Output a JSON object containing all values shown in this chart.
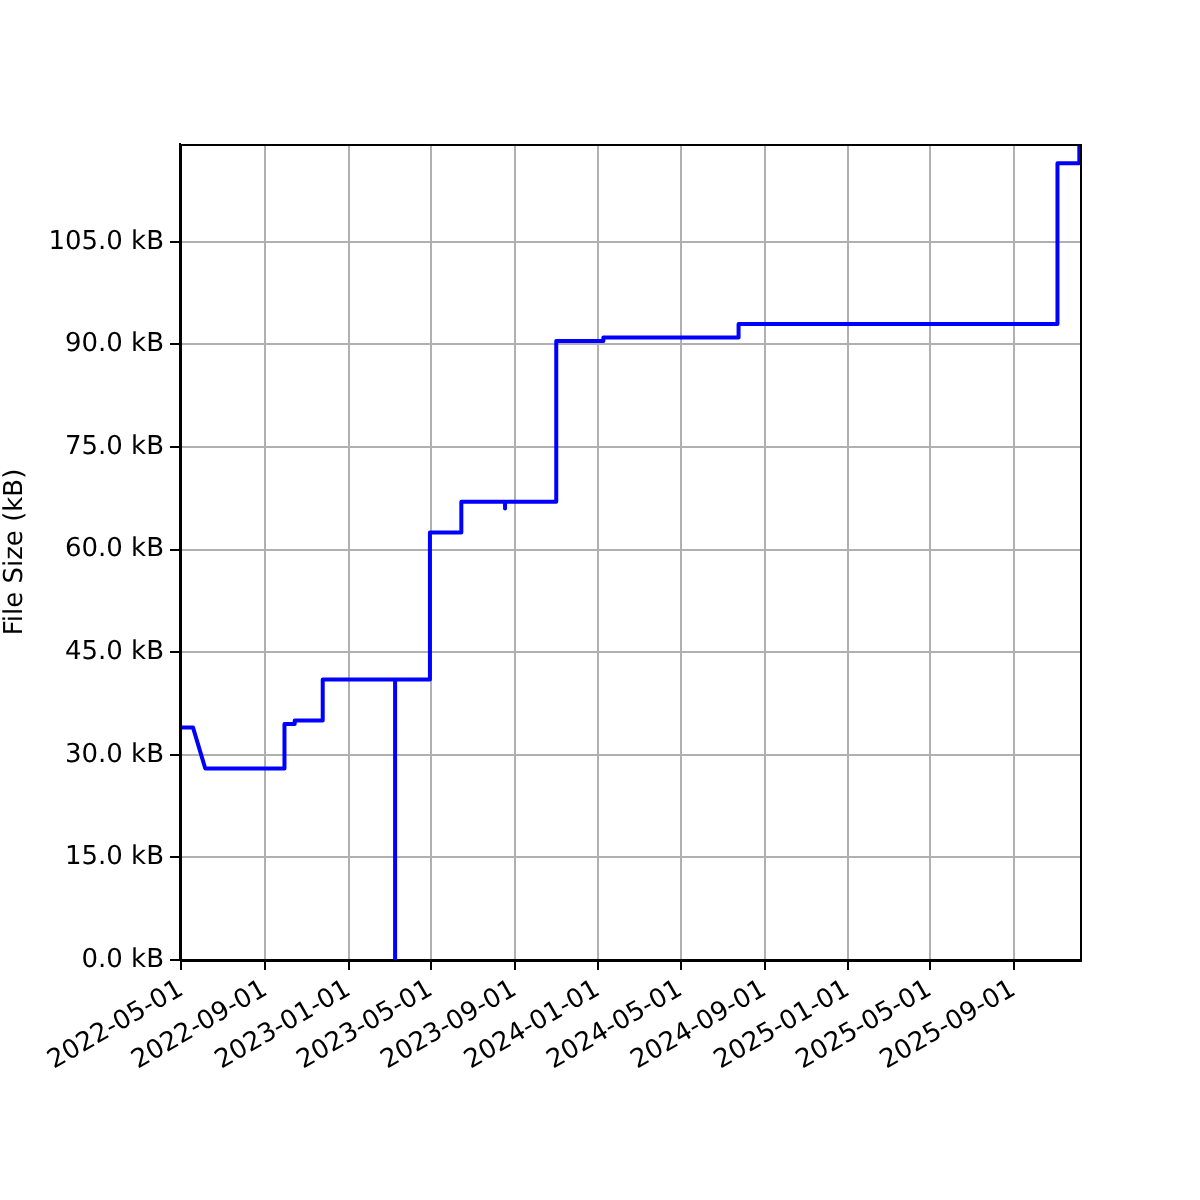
{
  "chart_data": {
    "type": "line",
    "ylabel": "File Size (kB)",
    "color": "#0000ff",
    "x": [
      "2022-04-29",
      "2022-05-18",
      "2022-06-05",
      "2022-09-29",
      "2022-09-29",
      "2022-10-14",
      "2022-10-14",
      "2022-11-24",
      "2022-11-24",
      "2023-03-10",
      "2023-03-10",
      "2023-03-10",
      "2023-04-30",
      "2023-04-30",
      "2023-06-15",
      "2023-06-15",
      "2023-08-18",
      "2023-08-18",
      "2023-08-18",
      "2023-11-01",
      "2023-11-01",
      "2024-01-09",
      "2024-01-09",
      "2024-07-25",
      "2024-07-25",
      "2025-11-04",
      "2025-11-04",
      "2025-12-06",
      "2025-12-06"
    ],
    "values": [
      34,
      34,
      28,
      28,
      34.5,
      34.5,
      35,
      35,
      41,
      41,
      0,
      41,
      41,
      62.5,
      62.5,
      67,
      67,
      66,
      67,
      67,
      90.5,
      90.5,
      91,
      91,
      93,
      93,
      116.5,
      116.5,
      119.3
    ],
    "xlim": [
      "2022-04-29",
      "2025-12-07"
    ],
    "ylim": [
      0,
      119.3
    ],
    "xticks": [
      "2022-05-01",
      "2022-09-01",
      "2023-01-01",
      "2023-05-01",
      "2023-09-01",
      "2024-01-01",
      "2024-05-01",
      "2024-09-01",
      "2025-01-01",
      "2025-05-01",
      "2025-09-01"
    ],
    "yticks": [
      {
        "value": 0,
        "label": "0.0 kB"
      },
      {
        "value": 15,
        "label": "15.0 kB"
      },
      {
        "value": 30,
        "label": "30.0 kB"
      },
      {
        "value": 45,
        "label": "45.0 kB"
      },
      {
        "value": 60,
        "label": "60.0 kB"
      },
      {
        "value": 75,
        "label": "75.0 kB"
      },
      {
        "value": 90,
        "label": "90.0 kB"
      },
      {
        "value": 105,
        "label": "105.0 kB"
      }
    ],
    "grid": true
  }
}
